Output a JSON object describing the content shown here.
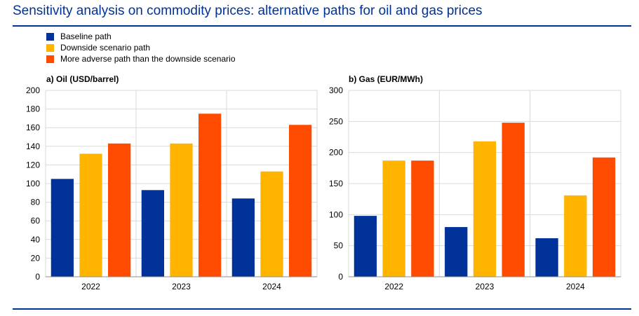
{
  "title": "Sensitivity analysis on commodity prices: alternative paths for oil and gas prices",
  "legend": [
    {
      "label": "Baseline path",
      "color": "#003299"
    },
    {
      "label": "Downside scenario path",
      "color": "#FFB400"
    },
    {
      "label": "More adverse path than the downside scenario",
      "color": "#FF4B00"
    }
  ],
  "chart_data": [
    {
      "type": "bar",
      "title": "a) Oil (USD/barrel)",
      "categories": [
        "2022",
        "2023",
        "2024"
      ],
      "ylim": [
        0,
        200
      ],
      "yticks": [
        "0",
        "20",
        "40",
        "60",
        "80",
        "100",
        "120",
        "140",
        "160",
        "180",
        "200"
      ],
      "series": [
        {
          "name": "Baseline path",
          "values": [
            105,
            93,
            84
          ]
        },
        {
          "name": "Downside scenario path",
          "values": [
            132,
            143,
            113
          ]
        },
        {
          "name": "More adverse path than the downside scenario",
          "values": [
            143,
            175,
            163
          ]
        }
      ],
      "grid": true
    },
    {
      "type": "bar",
      "title": "b) Gas (EUR/MWh)",
      "categories": [
        "2022",
        "2023",
        "2024"
      ],
      "ylim": [
        0,
        300
      ],
      "yticks": [
        "0",
        "50",
        "100",
        "150",
        "200",
        "250",
        "300"
      ],
      "series": [
        {
          "name": "Baseline path",
          "values": [
            98,
            80,
            62
          ]
        },
        {
          "name": "Downside scenario path",
          "values": [
            187,
            218,
            131
          ]
        },
        {
          "name": "More adverse path than the downside scenario",
          "values": [
            187,
            248,
            192
          ]
        }
      ],
      "grid": true
    }
  ]
}
